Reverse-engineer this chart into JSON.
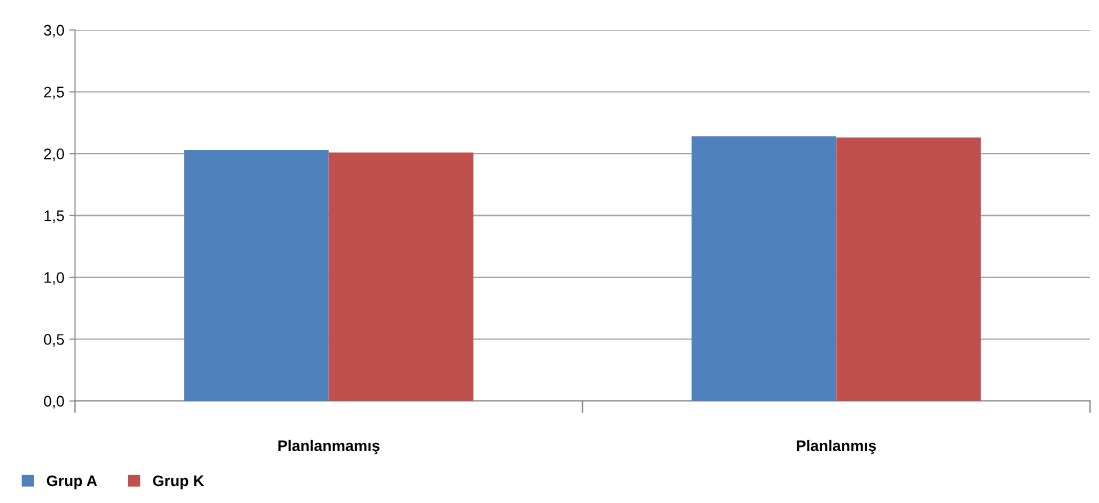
{
  "chart_data": {
    "type": "bar",
    "categories": [
      "Planlanmamış",
      "Planlanmış"
    ],
    "series": [
      {
        "name": "Grup A",
        "color": "#4f81bd",
        "values": [
          2.03,
          2.14
        ]
      },
      {
        "name": "Grup K",
        "color": "#c0504d",
        "values": [
          2.01,
          2.13
        ]
      }
    ],
    "ylim": [
      0,
      3
    ],
    "yticks": [
      {
        "value": 0,
        "label": "0,0"
      },
      {
        "value": 0.5,
        "label": "0,5"
      },
      {
        "value": 1,
        "label": "1,0"
      },
      {
        "value": 1.5,
        "label": "1,5"
      },
      {
        "value": 2,
        "label": "2,0"
      },
      {
        "value": 2.5,
        "label": "2,5"
      },
      {
        "value": 3,
        "label": "3,0"
      }
    ],
    "grid": "y",
    "legend": "bottom left"
  }
}
